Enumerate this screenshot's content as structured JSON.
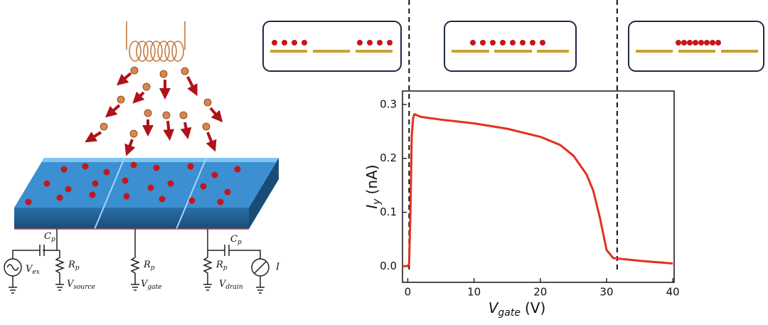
{
  "chart_data": {
    "type": "line",
    "xlabel": {
      "symbol": "V",
      "subscript": "gate",
      "unit": "(V)"
    },
    "ylabel": {
      "symbol": "I",
      "subscript": "y",
      "unit": "(nA)"
    },
    "x": [
      -0.8,
      0,
      0.2,
      0.4,
      0.6,
      0.8,
      1,
      2,
      5,
      10,
      15,
      20,
      23,
      25,
      27,
      28,
      29,
      30,
      31,
      35,
      40
    ],
    "values": [
      0.0,
      0.0,
      0.005,
      0.1,
      0.24,
      0.275,
      0.282,
      0.277,
      0.272,
      0.265,
      0.255,
      0.24,
      0.225,
      0.205,
      0.17,
      0.14,
      0.09,
      0.03,
      0.015,
      0.01,
      0.005
    ],
    "color": "#e0321e",
    "xlim": [
      -0.8,
      40.2
    ],
    "ylim": [
      -0.03,
      0.325
    ],
    "xticks": [
      0,
      10,
      20,
      30,
      40
    ],
    "yticks": [
      {
        "value": 0,
        "label": "0.0"
      },
      0.1,
      0.2,
      0.3
    ],
    "vlines": [
      0.2,
      31.6
    ]
  },
  "diagram": {
    "labels": [
      {
        "symbol": "C",
        "subscript": "p"
      },
      {
        "symbol": "C",
        "subscript": "p"
      },
      {
        "symbol": "V",
        "subscript": "ex"
      },
      {
        "symbol": "R",
        "subscript": "p"
      },
      {
        "symbol": "R",
        "subscript": "p"
      },
      {
        "symbol": "R",
        "subscript": "p"
      },
      {
        "symbol": "V",
        "subscript": "source"
      },
      {
        "symbol": "V",
        "subscript": "gate"
      },
      {
        "symbol": "V",
        "subscript": "drain"
      },
      {
        "symbol": "I"
      }
    ]
  }
}
